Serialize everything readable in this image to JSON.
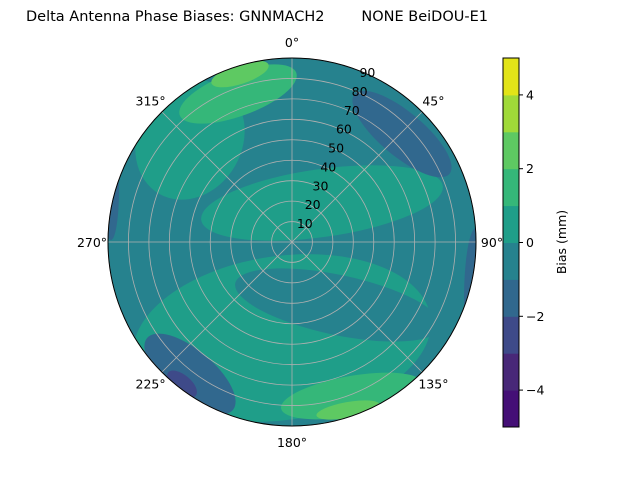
{
  "chart_data": {
    "type": "contour",
    "projection": "polar",
    "title": "Delta Antenna Phase Biases: GNNMACH2        NONE BeiDOU-E1",
    "theta_direction": "clockwise",
    "theta_zero": "north",
    "theta_ticks": [
      "0°",
      "45°",
      "90°",
      "135°",
      "180°",
      "225°",
      "270°",
      "315°"
    ],
    "r_ticks": [
      "10",
      "20",
      "30",
      "40",
      "50",
      "60",
      "70",
      "80",
      "90"
    ],
    "r_range": [
      0,
      90
    ],
    "grid": true,
    "levels": [
      -5,
      -4,
      -3,
      -2,
      -1,
      0,
      1,
      2,
      3,
      4,
      5
    ],
    "level_colors": [
      "#440f76",
      "#482878",
      "#3e4a89",
      "#31688e",
      "#26828e",
      "#1f9e89",
      "#35b779",
      "#5ec962",
      "#a0da39",
      "#e2e418"
    ],
    "background_level_value": -0.5,
    "features": [
      {
        "value": 0.5,
        "azimuth": 200,
        "zenith": 50
      },
      {
        "value": 0.5,
        "azimuth": 75,
        "zenith": 30
      },
      {
        "value": 0.5,
        "azimuth": 320,
        "zenith": 70
      },
      {
        "value": 1.5,
        "azimuth": 340,
        "zenith": 80
      },
      {
        "value": 2.5,
        "azimuth": 345,
        "zenith": 85
      },
      {
        "value": 1.5,
        "azimuth": 160,
        "zenith": 80
      },
      {
        "value": 2.5,
        "azimuth": 160,
        "zenith": 86
      },
      {
        "value": -1.5,
        "azimuth": 50,
        "zenith": 75
      },
      {
        "value": -1.5,
        "azimuth": 110,
        "zenith": 88
      },
      {
        "value": -1.5,
        "azimuth": 230,
        "zenith": 80
      },
      {
        "value": -2.5,
        "azimuth": 230,
        "zenith": 85
      },
      {
        "value": -1.5,
        "azimuth": 290,
        "zenith": 88
      }
    ],
    "colorbar": {
      "label": "Bias (mm)",
      "ticks": [
        "4",
        "2",
        "0",
        "−2",
        "−4"
      ],
      "tick_values": [
        4,
        2,
        0,
        -2,
        -4
      ],
      "range": [
        -5,
        5
      ]
    }
  }
}
